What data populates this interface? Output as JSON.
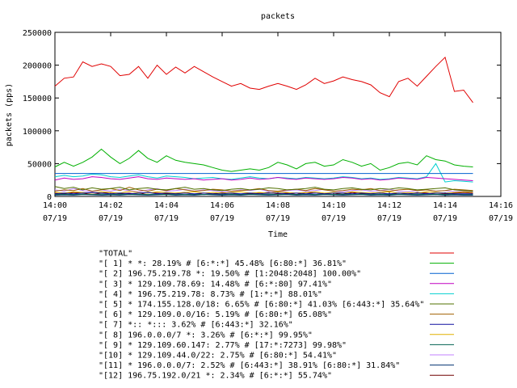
{
  "chart_data": {
    "type": "line",
    "title": "packets",
    "xlabel": "Time",
    "ylabel": "packets (pps)",
    "ylim": [
      0,
      250000
    ],
    "yticks": [
      {
        "value": 0,
        "label": "0"
      },
      {
        "value": 50000,
        "label": "50000"
      },
      {
        "value": 100000,
        "label": "100000"
      },
      {
        "value": 150000,
        "label": "150000"
      },
      {
        "value": 200000,
        "label": "200000"
      },
      {
        "value": 250000,
        "label": "250000"
      }
    ],
    "xlim": [
      "14:00",
      "14:16"
    ],
    "xticks": [
      {
        "time": "14:00",
        "date": "07/19"
      },
      {
        "time": "14:02",
        "date": "07/19"
      },
      {
        "time": "14:04",
        "date": "07/19"
      },
      {
        "time": "14:06",
        "date": "07/19"
      },
      {
        "time": "14:08",
        "date": "07/19"
      },
      {
        "time": "14:10",
        "date": "07/19"
      },
      {
        "time": "14:12",
        "date": "07/19"
      },
      {
        "time": "14:14",
        "date": "07/19"
      },
      {
        "time": "14:16",
        "date": "07/19"
      }
    ],
    "x": [
      "14:00:00",
      "14:00:20",
      "14:00:40",
      "14:01:00",
      "14:01:20",
      "14:01:40",
      "14:02:00",
      "14:02:20",
      "14:02:40",
      "14:03:00",
      "14:03:20",
      "14:03:40",
      "14:04:00",
      "14:04:20",
      "14:04:40",
      "14:05:00",
      "14:05:20",
      "14:05:40",
      "14:06:00",
      "14:06:20",
      "14:06:40",
      "14:07:00",
      "14:07:20",
      "14:07:40",
      "14:08:00",
      "14:08:20",
      "14:08:40",
      "14:09:00",
      "14:09:20",
      "14:09:40",
      "14:10:00",
      "14:10:20",
      "14:10:40",
      "14:11:00",
      "14:11:20",
      "14:11:40",
      "14:12:00",
      "14:12:20",
      "14:12:40",
      "14:13:00",
      "14:13:20",
      "14:13:40",
      "14:14:00",
      "14:14:20",
      "14:14:40",
      "14:15:00"
    ],
    "legend_placement": "bottom",
    "grid": false,
    "series": [
      {
        "name": "\"TOTAL\"",
        "color": "#e00000",
        "values": [
          168000,
          180000,
          182000,
          205000,
          198000,
          202000,
          198000,
          184000,
          186000,
          198000,
          180000,
          200000,
          186000,
          197000,
          188000,
          198000,
          190000,
          182000,
          175000,
          168000,
          172000,
          165000,
          163000,
          168000,
          172000,
          168000,
          163000,
          170000,
          180000,
          172000,
          176000,
          182000,
          178000,
          175000,
          170000,
          158000,
          152000,
          175000,
          180000,
          168000,
          183000,
          198000,
          212000,
          160000,
          162000,
          143000
        ]
      },
      {
        "name": "\"[ 1] * *: 28.19% # [6:*:*] 45.48% [6:80:*] 36.81%\"",
        "color": "#00b000",
        "values": [
          45000,
          52000,
          46000,
          52000,
          60000,
          72000,
          60000,
          50000,
          58000,
          70000,
          58000,
          52000,
          62000,
          55000,
          52000,
          50000,
          48000,
          44000,
          40000,
          38000,
          40000,
          42000,
          40000,
          44000,
          52000,
          48000,
          42000,
          50000,
          52000,
          46000,
          48000,
          56000,
          52000,
          46000,
          50000,
          40000,
          44000,
          50000,
          52000,
          48000,
          62000,
          56000,
          54000,
          48000,
          46000,
          45000
        ]
      },
      {
        "name": "\"[ 2] 196.75.219.78 *: 19.50% # [1:2048:2048] 100.00%\"",
        "color": "#0060d0",
        "values": [
          35000,
          35000,
          35000,
          35000,
          35000,
          35000,
          35000,
          35000,
          35000,
          35000,
          35000,
          35000,
          35000,
          35000,
          35000,
          35000,
          35000,
          35000,
          35000,
          35000,
          35000,
          35000,
          35000,
          35000,
          35000,
          35000,
          35000,
          35000,
          35000,
          35000,
          35000,
          35000,
          35000,
          35000,
          35000,
          35000,
          35000,
          35000,
          35000,
          35000,
          35000,
          35000,
          35000,
          35000,
          35000,
          35000
        ]
      },
      {
        "name": "\"[ 3] * 129.109.78.69: 14.48% # [6:*:80] 97.41%\"",
        "color": "#c000c0",
        "values": [
          25000,
          28000,
          26000,
          27000,
          30000,
          29000,
          27000,
          26000,
          28000,
          30000,
          27000,
          26000,
          28000,
          27000,
          26000,
          27000,
          25000,
          26000,
          27000,
          25000,
          26000,
          28000,
          26000,
          27000,
          29000,
          27000,
          26000,
          28000,
          27000,
          26000,
          27000,
          29000,
          28000,
          26000,
          27000,
          25000,
          26000,
          28000,
          27000,
          26000,
          29000,
          28000,
          27000,
          26000,
          25000,
          24000
        ]
      },
      {
        "name": "\"[ 4] * 196.75.219.78: 8.73% # [1:*:*] 88.01%\"",
        "color": "#00d0d0",
        "values": [
          30000,
          32000,
          30000,
          31000,
          34000,
          33000,
          30000,
          29000,
          31000,
          33000,
          30000,
          28000,
          31000,
          30000,
          29000,
          27000,
          28000,
          29000,
          27000,
          26000,
          28000,
          30000,
          28000,
          27000,
          29000,
          28000,
          27000,
          29000,
          28000,
          27000,
          28000,
          30000,
          29000,
          27000,
          28000,
          26000,
          27000,
          29000,
          28000,
          27000,
          30000,
          50000,
          22000,
          24000,
          23000,
          22000
        ]
      },
      {
        "name": "\"[ 5] * 174.155.128.0/18: 6.65% # [6:80:*] 41.03% [6:443:*] 35.64%\"",
        "color": "#507000",
        "values": [
          15000,
          12000,
          14000,
          10000,
          13000,
          11000,
          12000,
          14000,
          10000,
          12000,
          13000,
          11000,
          10000,
          12000,
          14000,
          11000,
          12000,
          10000,
          9000,
          11000,
          12000,
          10000,
          11000,
          13000,
          12000,
          10000,
          11000,
          12000,
          14000,
          11000,
          10000,
          12000,
          13000,
          11000,
          10000,
          12000,
          11000,
          13000,
          12000,
          10000,
          11000,
          12000,
          13000,
          10000,
          9000,
          8000
        ]
      },
      {
        "name": "\"[ 6] * 129.109.0.0/16: 5.19% # [6:80:*] 65.08%\"",
        "color": "#a06000",
        "values": [
          8000,
          10000,
          9000,
          12000,
          8000,
          10000,
          12000,
          9000,
          14000,
          10000,
          8000,
          11000,
          9000,
          12000,
          10000,
          8000,
          9000,
          11000,
          10000,
          8000,
          9000,
          10000,
          12000,
          9000,
          8000,
          10000,
          11000,
          9000,
          12000,
          10000,
          8000,
          9000,
          11000,
          10000,
          12000,
          9000,
          8000,
          10000,
          11000,
          9000,
          10000,
          8000,
          9000,
          11000,
          10000,
          9000
        ]
      },
      {
        "name": "\"[ 7] *:: *::: 3.62% # [6:443:*] 32.16%\"",
        "color": "#1010a0",
        "values": [
          4000,
          5000,
          4000,
          5000,
          6000,
          5000,
          4000,
          5000,
          4000,
          5000,
          6000,
          4000,
          5000,
          4000,
          5000,
          4000,
          5000,
          4000,
          4000,
          5000,
          4000,
          5000,
          4000,
          5000,
          5000,
          4000,
          5000,
          4000,
          5000,
          4000,
          5000,
          5000,
          4000,
          5000,
          4000,
          5000,
          4000,
          5000,
          4000,
          5000,
          4000,
          5000,
          5000,
          4000,
          4000,
          4000
        ]
      },
      {
        "name": "\"[ 8] 196.0.0.0/7 *: 3.26% # [6:*:*] 99.95%\"",
        "color": "#e0b000",
        "values": [
          6000,
          5000,
          7000,
          6000,
          5000,
          7000,
          6000,
          5000,
          8000,
          6000,
          5000,
          7000,
          6000,
          5000,
          6000,
          7000,
          5000,
          6000,
          5000,
          6000,
          7000,
          5000,
          6000,
          5000,
          7000,
          6000,
          5000,
          6000,
          7000,
          5000,
          6000,
          5000,
          7000,
          6000,
          5000,
          6000,
          7000,
          5000,
          6000,
          5000,
          7000,
          6000,
          5000,
          6000,
          7000,
          6000
        ]
      },
      {
        "name": "\"[ 9] * 129.109.60.147: 2.77% # [17:*:7273] 99.98%\"",
        "color": "#006050",
        "values": [
          3000,
          3500,
          3000,
          3500,
          3000,
          3500,
          3000,
          3500,
          3000,
          3500,
          3000,
          3500,
          3000,
          3500,
          3000,
          3500,
          3000,
          3500,
          3000,
          3500,
          3000,
          3500,
          3000,
          3500,
          3000,
          3500,
          3000,
          3500,
          3000,
          3500,
          3000,
          3500,
          3000,
          3500,
          3000,
          3500,
          3000,
          3500,
          3000,
          3500,
          3000,
          3500,
          3000,
          3500,
          3000,
          3000
        ]
      },
      {
        "name": "\"[10] * 129.109.44.0/22: 2.75% # [6:80:*] 54.41%\"",
        "color": "#c080ff",
        "values": [
          10000,
          8000,
          12000,
          9000,
          7000,
          10000,
          8000,
          11000,
          9000,
          7000,
          10000,
          12000,
          8000,
          9000,
          11000,
          8000,
          10000,
          9000,
          7000,
          8000,
          10000,
          9000,
          11000,
          8000,
          7000,
          9000,
          10000,
          8000,
          9000,
          11000,
          8000,
          7000,
          9000,
          10000,
          8000,
          9000,
          11000,
          8000,
          7000,
          9000,
          10000,
          8000,
          9000,
          7000,
          8000,
          7000
        ]
      },
      {
        "name": "\"[11] * 196.0.0.0/7: 2.52% # [6:443:*] 38.91% [6:80:*] 31.84%\"",
        "color": "#003070",
        "values": [
          2000,
          2500,
          2000,
          3000,
          2500,
          2000,
          2500,
          2000,
          3000,
          2500,
          2000,
          2500,
          3000,
          2000,
          2500,
          2000,
          3000,
          2500,
          2000,
          2500,
          2000,
          3000,
          2500,
          2000,
          2500,
          3000,
          2000,
          2500,
          2000,
          3000,
          2500,
          2000,
          2500,
          3000,
          2000,
          2500,
          2000,
          3000,
          2500,
          2000,
          2500,
          3000,
          2000,
          2500,
          2000,
          2000
        ]
      },
      {
        "name": "\"[12] 196.75.192.0/21 *: 2.34% # [6:*:*] 55.74%\"",
        "color": "#700000",
        "values": [
          5000,
          4000,
          6000,
          5000,
          3000,
          5000,
          6000,
          4000,
          5000,
          3000,
          6000,
          5000,
          4000,
          5000,
          6000,
          3000,
          5000,
          4000,
          6000,
          5000,
          3000,
          4000,
          5000,
          6000,
          4000,
          5000,
          3000,
          6000,
          5000,
          4000,
          5000,
          3000,
          6000,
          4000,
          5000,
          6000,
          3000,
          5000,
          4000,
          6000,
          5000,
          3000,
          4000,
          5000,
          6000,
          5000
        ]
      }
    ]
  }
}
